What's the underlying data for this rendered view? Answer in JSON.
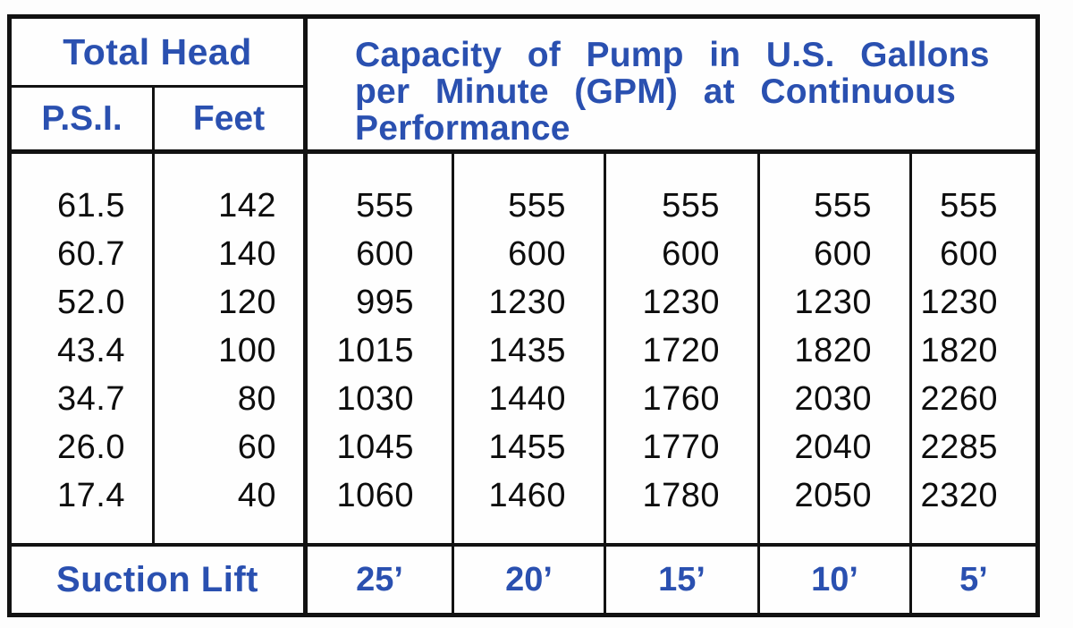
{
  "colors": {
    "accent_blue": "#2a50b0",
    "line_black": "#121212",
    "number_black": "#0d0d0d",
    "background": "#fdfdfd"
  },
  "table": {
    "header": {
      "total_head": "Total Head",
      "psi": "P.S.I.",
      "feet": "Feet",
      "capacity_lines": [
        "Capacity of Pump in U.S. Gallons",
        "per Minute (GPM) at Continuous",
        "Performance"
      ]
    },
    "rows": [
      {
        "psi": "61.5",
        "feet": "142",
        "gpm": [
          "555",
          "555",
          "555",
          "555",
          "555"
        ]
      },
      {
        "psi": "60.7",
        "feet": "140",
        "gpm": [
          "600",
          "600",
          "600",
          "600",
          "600"
        ]
      },
      {
        "psi": "52.0",
        "feet": "120",
        "gpm": [
          "995",
          "1230",
          "1230",
          "1230",
          "1230"
        ]
      },
      {
        "psi": "43.4",
        "feet": "100",
        "gpm": [
          "1015",
          "1435",
          "1720",
          "1820",
          "1820"
        ]
      },
      {
        "psi": "34.7",
        "feet": "80",
        "gpm": [
          "1030",
          "1440",
          "1760",
          "2030",
          "2260"
        ]
      },
      {
        "psi": "26.0",
        "feet": "60",
        "gpm": [
          "1045",
          "1455",
          "1770",
          "2040",
          "2285"
        ]
      },
      {
        "psi": "17.4",
        "feet": "40",
        "gpm": [
          "1060",
          "1460",
          "1780",
          "2050",
          "2320"
        ]
      }
    ],
    "footer": {
      "label": "Suction Lift",
      "lifts": [
        "25’",
        "20’",
        "15’",
        "10’",
        "5’"
      ]
    }
  }
}
